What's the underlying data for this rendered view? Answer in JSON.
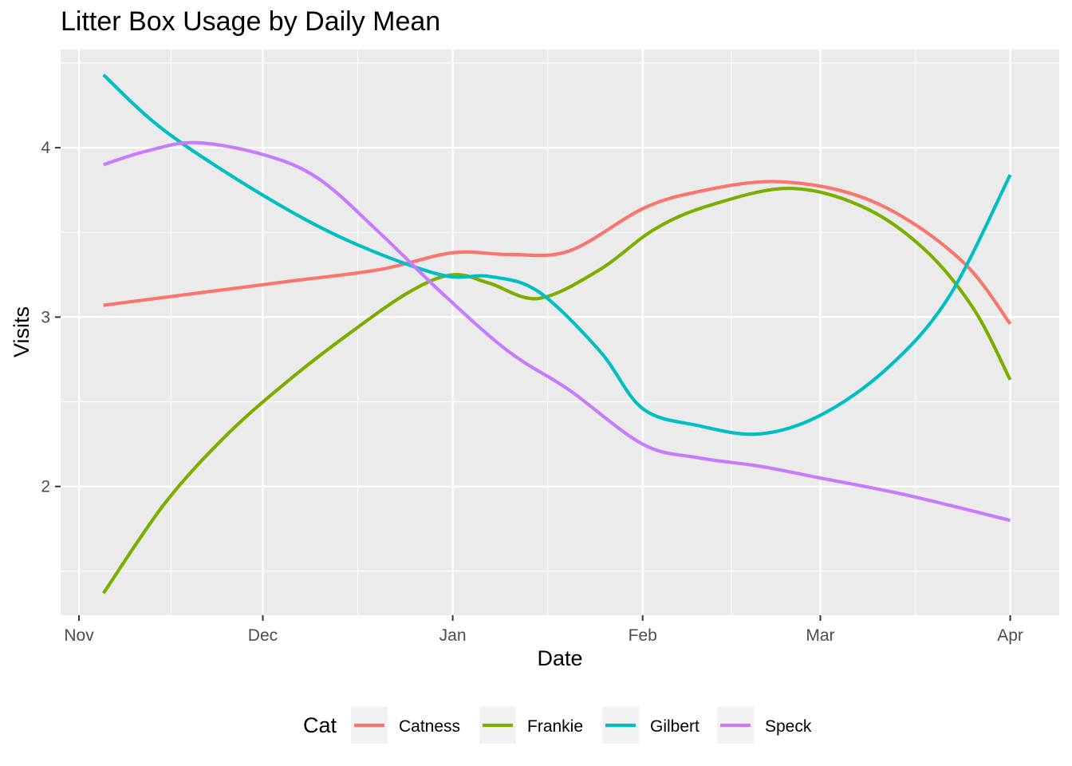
{
  "chart_data": {
    "type": "line",
    "title": "Litter Box Usage by Daily Mean",
    "xlabel": "Date",
    "ylabel": "Visits",
    "x_ticks": [
      "Nov",
      "Dec",
      "Jan",
      "Feb",
      "Mar",
      "Apr"
    ],
    "x_tick_dates": [
      "2019-11-01",
      "2019-12-01",
      "2020-01-01",
      "2020-02-01",
      "2020-03-01",
      "2020-04-01"
    ],
    "xlim": [
      "2019-10-29",
      "2020-04-09"
    ],
    "y_ticks": [
      2,
      3,
      4
    ],
    "ylim": [
      1.24,
      4.58
    ],
    "grid": true,
    "legend_title": "Cat",
    "legend_position": "bottom",
    "series": [
      {
        "name": "Catness",
        "color": "#F8766D",
        "points": [
          [
            "2019-11-05",
            3.07
          ],
          [
            "2019-11-20",
            3.14
          ],
          [
            "2019-12-05",
            3.21
          ],
          [
            "2019-12-20",
            3.28
          ],
          [
            "2020-01-01",
            3.38
          ],
          [
            "2020-01-10",
            3.37
          ],
          [
            "2020-01-20",
            3.39
          ],
          [
            "2020-02-01",
            3.64
          ],
          [
            "2020-02-10",
            3.74
          ],
          [
            "2020-02-22",
            3.8
          ],
          [
            "2020-03-05",
            3.74
          ],
          [
            "2020-03-15",
            3.58
          ],
          [
            "2020-03-25",
            3.3
          ],
          [
            "2020-04-01",
            2.96
          ]
        ]
      },
      {
        "name": "Frankie",
        "color": "#7CAE00",
        "points": [
          [
            "2019-11-05",
            1.37
          ],
          [
            "2019-11-15",
            1.9
          ],
          [
            "2019-11-25",
            2.3
          ],
          [
            "2019-12-05",
            2.62
          ],
          [
            "2019-12-15",
            2.9
          ],
          [
            "2019-12-25",
            3.15
          ],
          [
            "2020-01-01",
            3.25
          ],
          [
            "2020-01-07",
            3.2
          ],
          [
            "2020-01-15",
            3.11
          ],
          [
            "2020-01-25",
            3.28
          ],
          [
            "2020-02-03",
            3.52
          ],
          [
            "2020-02-12",
            3.66
          ],
          [
            "2020-02-25",
            3.76
          ],
          [
            "2020-03-08",
            3.65
          ],
          [
            "2020-03-18",
            3.4
          ],
          [
            "2020-03-26",
            3.05
          ],
          [
            "2020-04-01",
            2.63
          ]
        ]
      },
      {
        "name": "Gilbert",
        "color": "#00BFC4",
        "points": [
          [
            "2019-11-05",
            4.43
          ],
          [
            "2019-11-15",
            4.1
          ],
          [
            "2019-12-01",
            3.72
          ],
          [
            "2019-12-15",
            3.45
          ],
          [
            "2019-12-30",
            3.25
          ],
          [
            "2020-01-07",
            3.24
          ],
          [
            "2020-01-15",
            3.15
          ],
          [
            "2020-01-25",
            2.8
          ],
          [
            "2020-02-01",
            2.46
          ],
          [
            "2020-02-10",
            2.36
          ],
          [
            "2020-02-20",
            2.31
          ],
          [
            "2020-03-01",
            2.42
          ],
          [
            "2020-03-12",
            2.7
          ],
          [
            "2020-03-22",
            3.12
          ],
          [
            "2020-04-01",
            3.84
          ]
        ]
      },
      {
        "name": "Speck",
        "color": "#C77CFF",
        "points": [
          [
            "2019-11-05",
            3.9
          ],
          [
            "2019-11-12",
            3.98
          ],
          [
            "2019-11-20",
            4.03
          ],
          [
            "2019-12-01",
            3.96
          ],
          [
            "2019-12-10",
            3.82
          ],
          [
            "2019-12-20",
            3.5
          ],
          [
            "2019-12-30",
            3.15
          ],
          [
            "2020-01-10",
            2.8
          ],
          [
            "2020-01-20",
            2.57
          ],
          [
            "2020-02-01",
            2.25
          ],
          [
            "2020-02-10",
            2.17
          ],
          [
            "2020-02-20",
            2.12
          ],
          [
            "2020-03-01",
            2.05
          ],
          [
            "2020-03-15",
            1.95
          ],
          [
            "2020-04-01",
            1.8
          ]
        ]
      }
    ]
  }
}
